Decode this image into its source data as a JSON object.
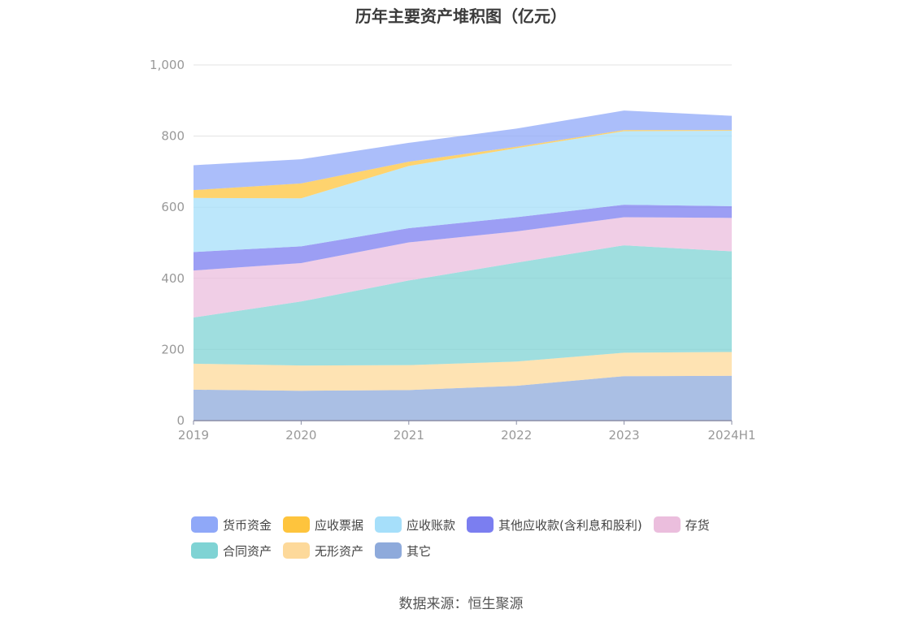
{
  "title": "历年主要资产堆积图（亿元）",
  "source": "数据来源：恒生聚源",
  "chart_data": {
    "type": "area",
    "stacked": true,
    "title": "历年主要资产堆积图（亿元）",
    "categories": [
      "2019",
      "2020",
      "2021",
      "2022",
      "2023",
      "2024H1"
    ],
    "ylim": [
      0,
      1000
    ],
    "yticks": [
      0,
      200,
      400,
      600,
      800,
      1000
    ],
    "ytick_labels": [
      "0",
      "200",
      "400",
      "600",
      "800",
      "1,000"
    ],
    "grid": true,
    "legend_position": "bottom",
    "series": [
      {
        "name": "其它",
        "color": "#8eaadb",
        "values": [
          87,
          84,
          86,
          98,
          125,
          126
        ]
      },
      {
        "name": "无形资产",
        "color": "#fdd99a",
        "values": [
          73,
          71,
          70,
          68,
          66,
          67
        ]
      },
      {
        "name": "合同资产",
        "color": "#7fd3d4",
        "values": [
          130,
          180,
          238,
          278,
          302,
          283
        ]
      },
      {
        "name": "存货",
        "color": "#ebbedd",
        "values": [
          132,
          108,
          107,
          88,
          79,
          94
        ]
      },
      {
        "name": "其他应收款(含利息和股利)",
        "color": "#7b7ef0",
        "values": [
          52,
          47,
          40,
          40,
          35,
          33
        ]
      },
      {
        "name": "应收账款",
        "color": "#a6dffa",
        "values": [
          152,
          135,
          175,
          194,
          207,
          212
        ]
      },
      {
        "name": "应收票据",
        "color": "#fec43d",
        "values": [
          22,
          42,
          12,
          4,
          3,
          2
        ]
      },
      {
        "name": "货币资金",
        "color": "#8fa8f8",
        "values": [
          70,
          68,
          53,
          51,
          55,
          40
        ]
      }
    ],
    "legend_order": [
      "货币资金",
      "应收票据",
      "应收账款",
      "其他应收款(含利息和股利)",
      "存货",
      "合同资产",
      "无形资产",
      "其它"
    ]
  }
}
